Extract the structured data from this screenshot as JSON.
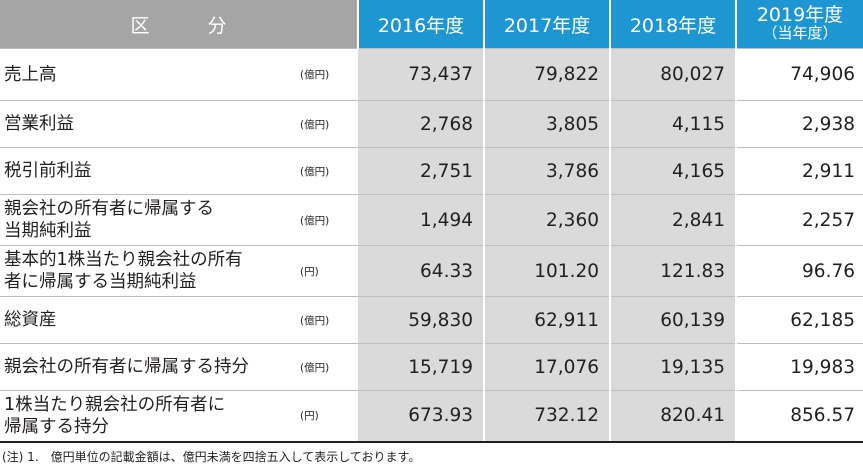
{
  "header": {
    "kubun_1": "区",
    "kubun_2": "分",
    "years": [
      "2016年度",
      "2017年度",
      "2018年度"
    ],
    "current_year": "2019年度",
    "current_year_sub": "（当年度）"
  },
  "rows": [
    {
      "label_1": "売上高",
      "label_2": "",
      "unit": "(億円)",
      "values": [
        "73,437",
        "79,822",
        "80,027",
        "74,906"
      ]
    },
    {
      "label_1": "営業利益",
      "label_2": "",
      "unit": "(億円)",
      "values": [
        "2,768",
        "3,805",
        "4,115",
        "2,938"
      ]
    },
    {
      "label_1": "税引前利益",
      "label_2": "",
      "unit": "(億円)",
      "values": [
        "2,751",
        "3,786",
        "4,165",
        "2,911"
      ]
    },
    {
      "label_1": "親会社の所有者に帰属する",
      "label_2": "当期純利益",
      "unit": "(億円)",
      "values": [
        "1,494",
        "2,360",
        "2,841",
        "2,257"
      ]
    },
    {
      "label_1": "基本的1株当たり親会社の所有",
      "label_2": "者に帰属する当期純利益",
      "unit": "(円)",
      "values": [
        "64.33",
        "101.20",
        "121.83",
        "96.76"
      ]
    },
    {
      "label_1": "総資産",
      "label_2": "",
      "unit": "(億円)",
      "values": [
        "59,830",
        "62,911",
        "60,139",
        "62,185"
      ]
    },
    {
      "label_1": "親会社の所有者に帰属する持分",
      "label_2": "",
      "unit": "(億円)",
      "values": [
        "15,719",
        "17,076",
        "19,135",
        "19,983"
      ]
    },
    {
      "label_1": "1株当たり親会社の所有者に",
      "label_2": "帰属する持分",
      "unit": "(円)",
      "values": [
        "673.93",
        "732.12",
        "820.41",
        "856.57"
      ]
    }
  ],
  "note": "(注) 1.　億円単位の記載金額は、億円未満を四捨五入して表示しております。"
}
